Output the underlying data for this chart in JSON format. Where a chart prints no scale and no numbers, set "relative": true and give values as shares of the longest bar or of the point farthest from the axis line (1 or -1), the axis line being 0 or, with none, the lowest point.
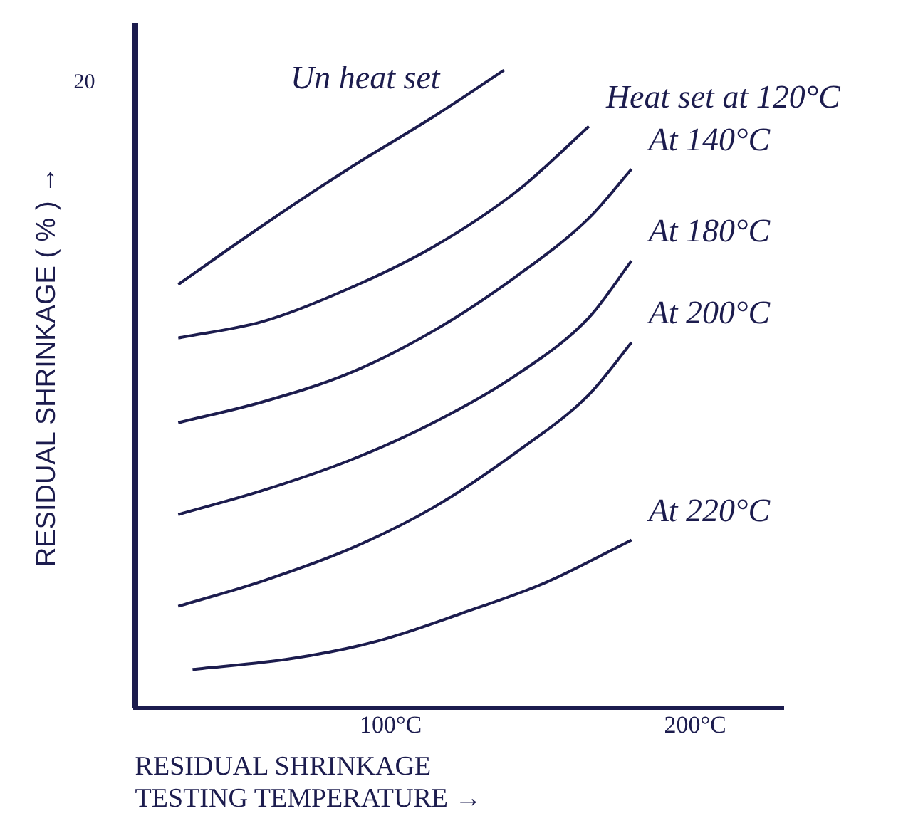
{
  "chart_data": {
    "type": "line",
    "relative": true,
    "xlabel": "RESIDUAL SHRINKAGE\nTESTING TEMPERATURE →",
    "ylabel": "RESIDUAL SHRINKAGE ( % ) →",
    "xlim": [
      16,
      229
    ],
    "xticks": [
      {
        "value": 100,
        "label": "100°C"
      },
      {
        "value": 200,
        "label": "200°C"
      }
    ],
    "grid": false,
    "legend": false,
    "marker": "none",
    "line_style": "solid",
    "annotations": [
      "20"
    ],
    "series": [
      {
        "name": "Un heat set",
        "color": "#1c1c4e",
        "x": [
          30.2,
          58.1,
          86.0,
          114.0,
          137.2
        ],
        "values": [
          0.664,
          0.757,
          0.845,
          0.927,
          1
        ]
      },
      {
        "name": "Heat set at 120°C",
        "color": "#1c1c4e",
        "x": [
          30.2,
          58.1,
          86.0,
          114.0,
          141.9,
          165.1
        ],
        "values": [
          0.58,
          0.606,
          0.657,
          0.723,
          0.812,
          0.912
        ]
      },
      {
        "name": "At 140°C",
        "color": "#1c1c4e",
        "x": [
          30.2,
          58.1,
          86.0,
          114.0,
          141.9,
          165.1,
          179.1
        ],
        "values": [
          0.447,
          0.48,
          0.524,
          0.591,
          0.679,
          0.768,
          0.845
        ]
      },
      {
        "name": "At 180°C",
        "color": "#1c1c4e",
        "x": [
          30.2,
          58.1,
          86.0,
          114.0,
          141.9,
          165.1,
          179.1
        ],
        "values": [
          0.303,
          0.341,
          0.387,
          0.447,
          0.524,
          0.612,
          0.701
        ]
      },
      {
        "name": "At 200°C",
        "color": "#1c1c4e",
        "x": [
          30.2,
          58.1,
          86.0,
          114.0,
          141.9,
          165.1,
          179.1
        ],
        "values": [
          0.159,
          0.199,
          0.248,
          0.314,
          0.403,
          0.491,
          0.573
        ]
      },
      {
        "name": "At 220°C",
        "color": "#1c1c4e",
        "x": [
          34.9,
          67.4,
          95.3,
          123.3,
          151.2,
          179.1
        ],
        "values": [
          0.06,
          0.077,
          0.104,
          0.148,
          0.197,
          0.263
        ]
      }
    ]
  }
}
